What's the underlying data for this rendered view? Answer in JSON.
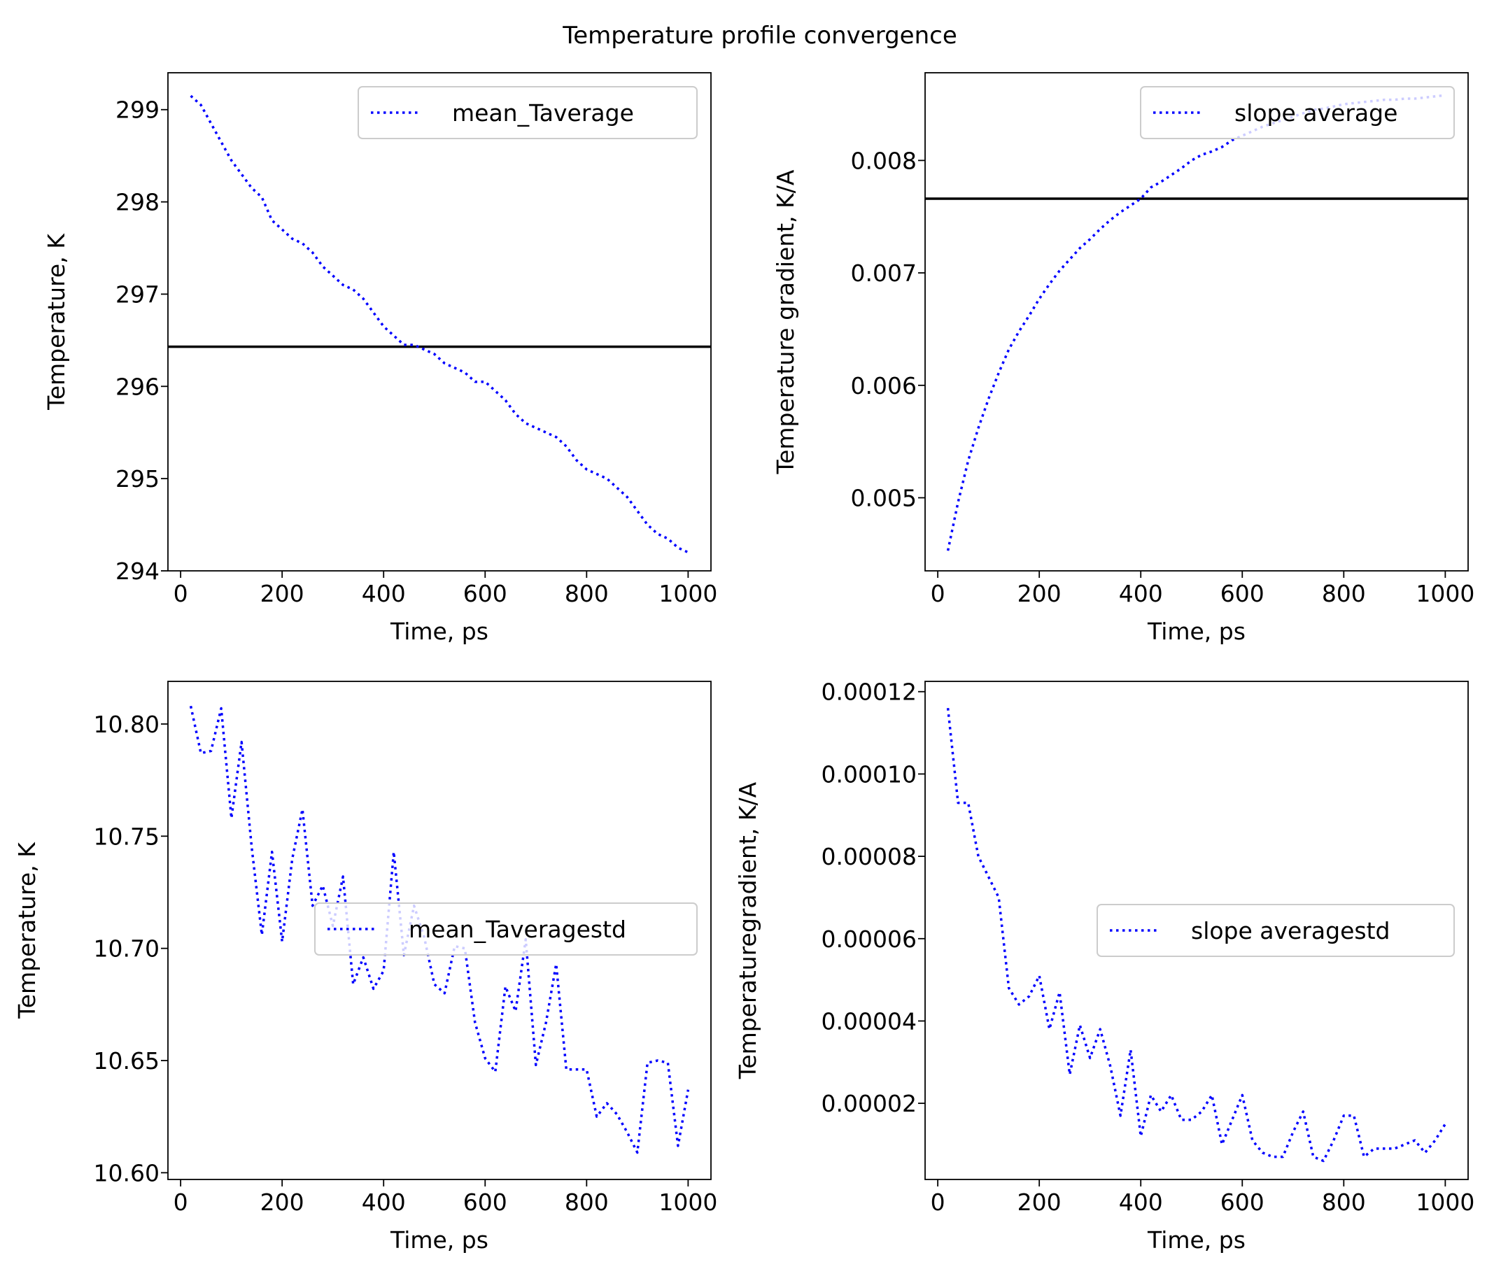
{
  "figure": {
    "suptitle": "Temperature profile convergence"
  },
  "chart_data": [
    {
      "type": "line",
      "xlabel": "Time, ps",
      "ylabel": "Temperature, K",
      "xlim": [
        -25,
        1045
      ],
      "ylim": [
        294.0,
        299.4
      ],
      "xticks": [
        0,
        200,
        400,
        600,
        800,
        1000
      ],
      "yticks": [
        294,
        295,
        296,
        297,
        298,
        299
      ],
      "ytick_labels": [
        "294",
        "295",
        "296",
        "297",
        "298",
        "299"
      ],
      "grid": false,
      "legend_position": "upper right",
      "hline": {
        "y": 296.43,
        "color": "#000000"
      },
      "series": [
        {
          "name": "mean_Taverage",
          "color": "#0000ff",
          "style": "dotted",
          "x": [
            20,
            40,
            60,
            80,
            100,
            120,
            140,
            160,
            180,
            200,
            220,
            240,
            260,
            280,
            300,
            320,
            340,
            360,
            380,
            400,
            420,
            440,
            460,
            480,
            500,
            520,
            540,
            560,
            580,
            600,
            620,
            640,
            660,
            680,
            700,
            720,
            740,
            760,
            780,
            800,
            820,
            840,
            860,
            880,
            900,
            920,
            940,
            960,
            980,
            1000
          ],
          "y": [
            299.15,
            299.05,
            298.85,
            298.65,
            298.45,
            298.3,
            298.15,
            298.05,
            297.8,
            297.7,
            297.6,
            297.55,
            297.45,
            297.3,
            297.2,
            297.1,
            297.05,
            296.95,
            296.8,
            296.65,
            296.55,
            296.45,
            296.45,
            296.4,
            296.35,
            296.25,
            296.2,
            296.15,
            296.05,
            296.05,
            295.95,
            295.85,
            295.7,
            295.6,
            295.55,
            295.5,
            295.45,
            295.35,
            295.2,
            295.1,
            295.05,
            295.0,
            294.9,
            294.8,
            294.65,
            294.5,
            294.4,
            294.35,
            294.25,
            294.2
          ]
        }
      ]
    },
    {
      "type": "line",
      "xlabel": "Time, ps",
      "ylabel": "Temperature gradient, K/A",
      "xlim": [
        -25,
        1045
      ],
      "ylim": [
        0.00435,
        0.00878
      ],
      "xticks": [
        0,
        200,
        400,
        600,
        800,
        1000
      ],
      "yticks": [
        0.005,
        0.006,
        0.007,
        0.008
      ],
      "ytick_labels": [
        "0.005",
        "0.006",
        "0.007",
        "0.008"
      ],
      "grid": false,
      "legend_position": "upper right",
      "hline": {
        "y": 0.00766,
        "color": "#000000"
      },
      "series": [
        {
          "name": "slope average",
          "color": "#0000ff",
          "style": "dotted",
          "x": [
            20,
            40,
            60,
            80,
            100,
            120,
            140,
            160,
            180,
            200,
            220,
            240,
            260,
            280,
            300,
            320,
            340,
            360,
            380,
            400,
            420,
            440,
            460,
            480,
            500,
            520,
            540,
            560,
            580,
            600,
            620,
            640,
            660,
            680,
            700,
            720,
            740,
            760,
            780,
            800,
            820,
            840,
            860,
            880,
            900,
            920,
            940,
            960,
            980,
            1000
          ],
          "y": [
            0.00453,
            0.00496,
            0.00533,
            0.00562,
            0.00588,
            0.00611,
            0.00632,
            0.00648,
            0.00662,
            0.00677,
            0.0069,
            0.00702,
            0.00712,
            0.00722,
            0.0073,
            0.00739,
            0.00747,
            0.00754,
            0.0076,
            0.00766,
            0.00776,
            0.00781,
            0.00787,
            0.00793,
            0.008,
            0.00805,
            0.00808,
            0.00812,
            0.00818,
            0.00822,
            0.00826,
            0.0083,
            0.00833,
            0.00836,
            0.00839,
            0.00842,
            0.00845,
            0.00846,
            0.00848,
            0.0085,
            0.00851,
            0.00852,
            0.00853,
            0.00854,
            0.00854,
            0.00855,
            0.00855,
            0.00856,
            0.00857,
            0.00858
          ]
        }
      ]
    },
    {
      "type": "line",
      "xlabel": "Time, ps",
      "ylabel": "Temperature, K",
      "xlim": [
        -25,
        1045
      ],
      "ylim": [
        10.597,
        10.819
      ],
      "xticks": [
        0,
        200,
        400,
        600,
        800,
        1000
      ],
      "yticks": [
        10.6,
        10.65,
        10.7,
        10.75,
        10.8
      ],
      "ytick_labels": [
        "10.60",
        "10.65",
        "10.70",
        "10.75",
        "10.80"
      ],
      "grid": false,
      "legend_position": "center right",
      "series": [
        {
          "name": "mean_Taverage std",
          "legend_label": "mean_Taveragestd",
          "color": "#0000ff",
          "style": "dotted",
          "x": [
            20,
            40,
            60,
            80,
            100,
            120,
            140,
            160,
            180,
            200,
            220,
            240,
            260,
            280,
            300,
            320,
            340,
            360,
            380,
            400,
            420,
            440,
            460,
            480,
            500,
            520,
            540,
            560,
            580,
            600,
            620,
            640,
            660,
            680,
            700,
            720,
            740,
            760,
            780,
            800,
            820,
            840,
            860,
            880,
            900,
            920,
            940,
            960,
            980,
            1000
          ],
          "y": [
            10.808,
            10.787,
            10.788,
            10.807,
            10.758,
            10.792,
            10.745,
            10.706,
            10.743,
            10.703,
            10.74,
            10.762,
            10.719,
            10.728,
            10.71,
            10.732,
            10.684,
            10.696,
            10.682,
            10.69,
            10.743,
            10.697,
            10.719,
            10.705,
            10.684,
            10.68,
            10.701,
            10.7,
            10.667,
            10.651,
            10.645,
            10.683,
            10.672,
            10.704,
            10.648,
            10.667,
            10.693,
            10.646,
            10.646,
            10.646,
            10.625,
            10.631,
            10.626,
            10.618,
            10.609,
            10.649,
            10.65,
            10.649,
            10.612,
            10.637
          ]
        }
      ]
    },
    {
      "type": "line",
      "xlabel": "Time, ps",
      "ylabel": "Temperaturegradient, K/A",
      "xlim": [
        -25,
        1045
      ],
      "ylim": [
        1.5e-06,
        0.0001225
      ],
      "xticks": [
        0,
        200,
        400,
        600,
        800,
        1000
      ],
      "yticks": [
        2e-05,
        4e-05,
        6e-05,
        8e-05,
        0.0001,
        0.00012
      ],
      "ytick_labels": [
        "0.00002",
        "0.00004",
        "0.00006",
        "0.00008",
        "0.00010",
        "0.00012"
      ],
      "grid": false,
      "legend_position": "center right",
      "series": [
        {
          "name": "slope average std",
          "legend_label": "slope averagestd",
          "color": "#0000ff",
          "style": "dotted",
          "x": [
            20,
            40,
            60,
            80,
            100,
            120,
            140,
            160,
            180,
            200,
            220,
            240,
            260,
            280,
            300,
            320,
            340,
            360,
            380,
            400,
            420,
            440,
            460,
            480,
            500,
            520,
            540,
            560,
            580,
            600,
            620,
            640,
            660,
            680,
            700,
            720,
            740,
            760,
            780,
            800,
            820,
            840,
            860,
            880,
            900,
            920,
            940,
            960,
            980,
            1000
          ],
          "y": [
            0.000116,
            9.3e-05,
            9.3e-05,
            8e-05,
            7.5e-05,
            7e-05,
            4.8e-05,
            4.4e-05,
            4.6e-05,
            5.1e-05,
            3.8e-05,
            4.7e-05,
            2.7e-05,
            3.9e-05,
            3.1e-05,
            3.8e-05,
            2.9e-05,
            1.7e-05,
            3.3e-05,
            1.2e-05,
            2.2e-05,
            1.8e-05,
            2.2e-05,
            1.6e-05,
            1.6e-05,
            1.8e-05,
            2.2e-05,
            1e-05,
            1.6e-05,
            2.2e-05,
            1.1e-05,
            8e-06,
            7e-06,
            7e-06,
            1.3e-05,
            1.8e-05,
            7e-06,
            6e-06,
            1.1e-05,
            1.7e-05,
            1.7e-05,
            7e-06,
            9e-06,
            9e-06,
            9e-06,
            1e-05,
            1.1e-05,
            8e-06,
            1.1e-05,
            1.5e-05
          ]
        }
      ]
    }
  ]
}
